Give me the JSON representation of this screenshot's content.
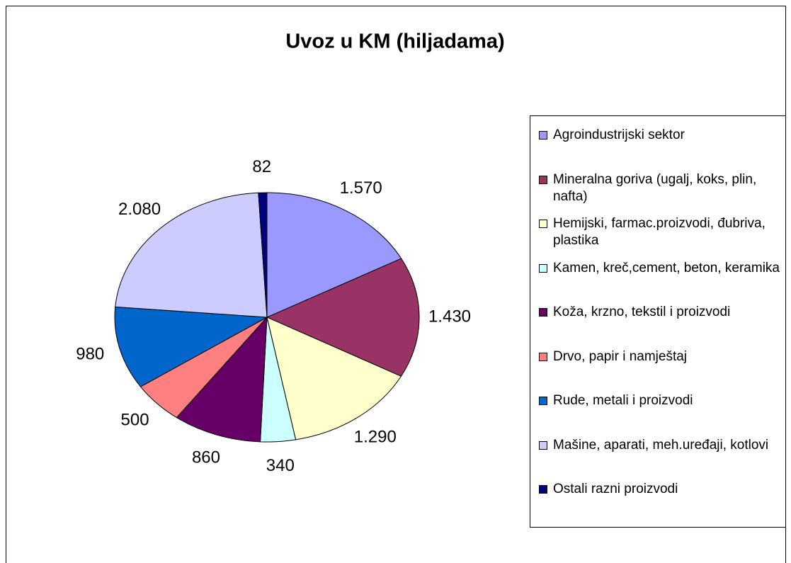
{
  "chart_data": {
    "type": "pie",
    "title": "Uvoz u KM (hiljadama)",
    "categories": [
      "Agroindustrijski sektor",
      "Mineralna goriva (ugalj, koks, plin, nafta)",
      "Hemijski, farmac.proizvodi, đubriva, plastika",
      "Kamen, kreč,cement, beton, keramika",
      "Koža, krzno, tekstil i proizvodi",
      "Drvo, papir i namještaj",
      "Rude, metali i proizvodi",
      "Mašine, aparati, meh.uređaji, kotlovi",
      "Ostali razni proizvodi"
    ],
    "values": [
      1570,
      1430,
      1290,
      340,
      860,
      500,
      980,
      2080,
      82
    ],
    "value_labels": [
      "1.570",
      "1.430",
      "1.290",
      "340",
      "860",
      "500",
      "980",
      "2.080",
      "82"
    ],
    "colors": [
      "#9999ff",
      "#993366",
      "#ffffcc",
      "#ccffff",
      "#660066",
      "#ff8080",
      "#0066cc",
      "#ccccff",
      "#000080"
    ],
    "legend": "right"
  }
}
